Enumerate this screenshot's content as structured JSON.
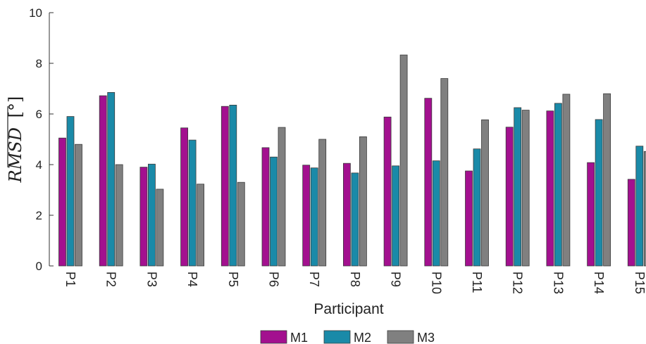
{
  "chart_data": {
    "type": "bar",
    "categories": [
      "P1",
      "P2",
      "P3",
      "P4",
      "P5",
      "P6",
      "P7",
      "P8",
      "P9",
      "P10",
      "P11",
      "P12",
      "P13",
      "P14",
      "P15"
    ],
    "series": [
      {
        "name": "M1",
        "color": "#a3108f",
        "values": [
          5.05,
          6.72,
          3.9,
          5.45,
          6.3,
          4.67,
          3.98,
          4.05,
          5.88,
          6.62,
          3.75,
          5.48,
          6.12,
          4.08,
          3.42
        ]
      },
      {
        "name": "M2",
        "color": "#1a8aa8",
        "values": [
          5.9,
          6.85,
          4.02,
          4.97,
          6.35,
          4.3,
          3.87,
          3.67,
          3.95,
          4.15,
          4.62,
          6.25,
          6.42,
          5.78,
          4.73
        ]
      },
      {
        "name": "M3",
        "color": "#808080",
        "values": [
          4.8,
          4.0,
          3.03,
          3.23,
          3.3,
          5.47,
          5.0,
          5.1,
          8.33,
          7.4,
          5.77,
          6.15,
          6.78,
          6.8,
          4.52
        ]
      }
    ],
    "xlabel": "Participant",
    "ylabel": "RMSD",
    "ylabel_unit": "[°]",
    "ylim": [
      0,
      10
    ],
    "yticks": [
      0,
      2,
      4,
      6,
      8,
      10
    ],
    "grid": false,
    "legend_position": "bottom-center"
  }
}
